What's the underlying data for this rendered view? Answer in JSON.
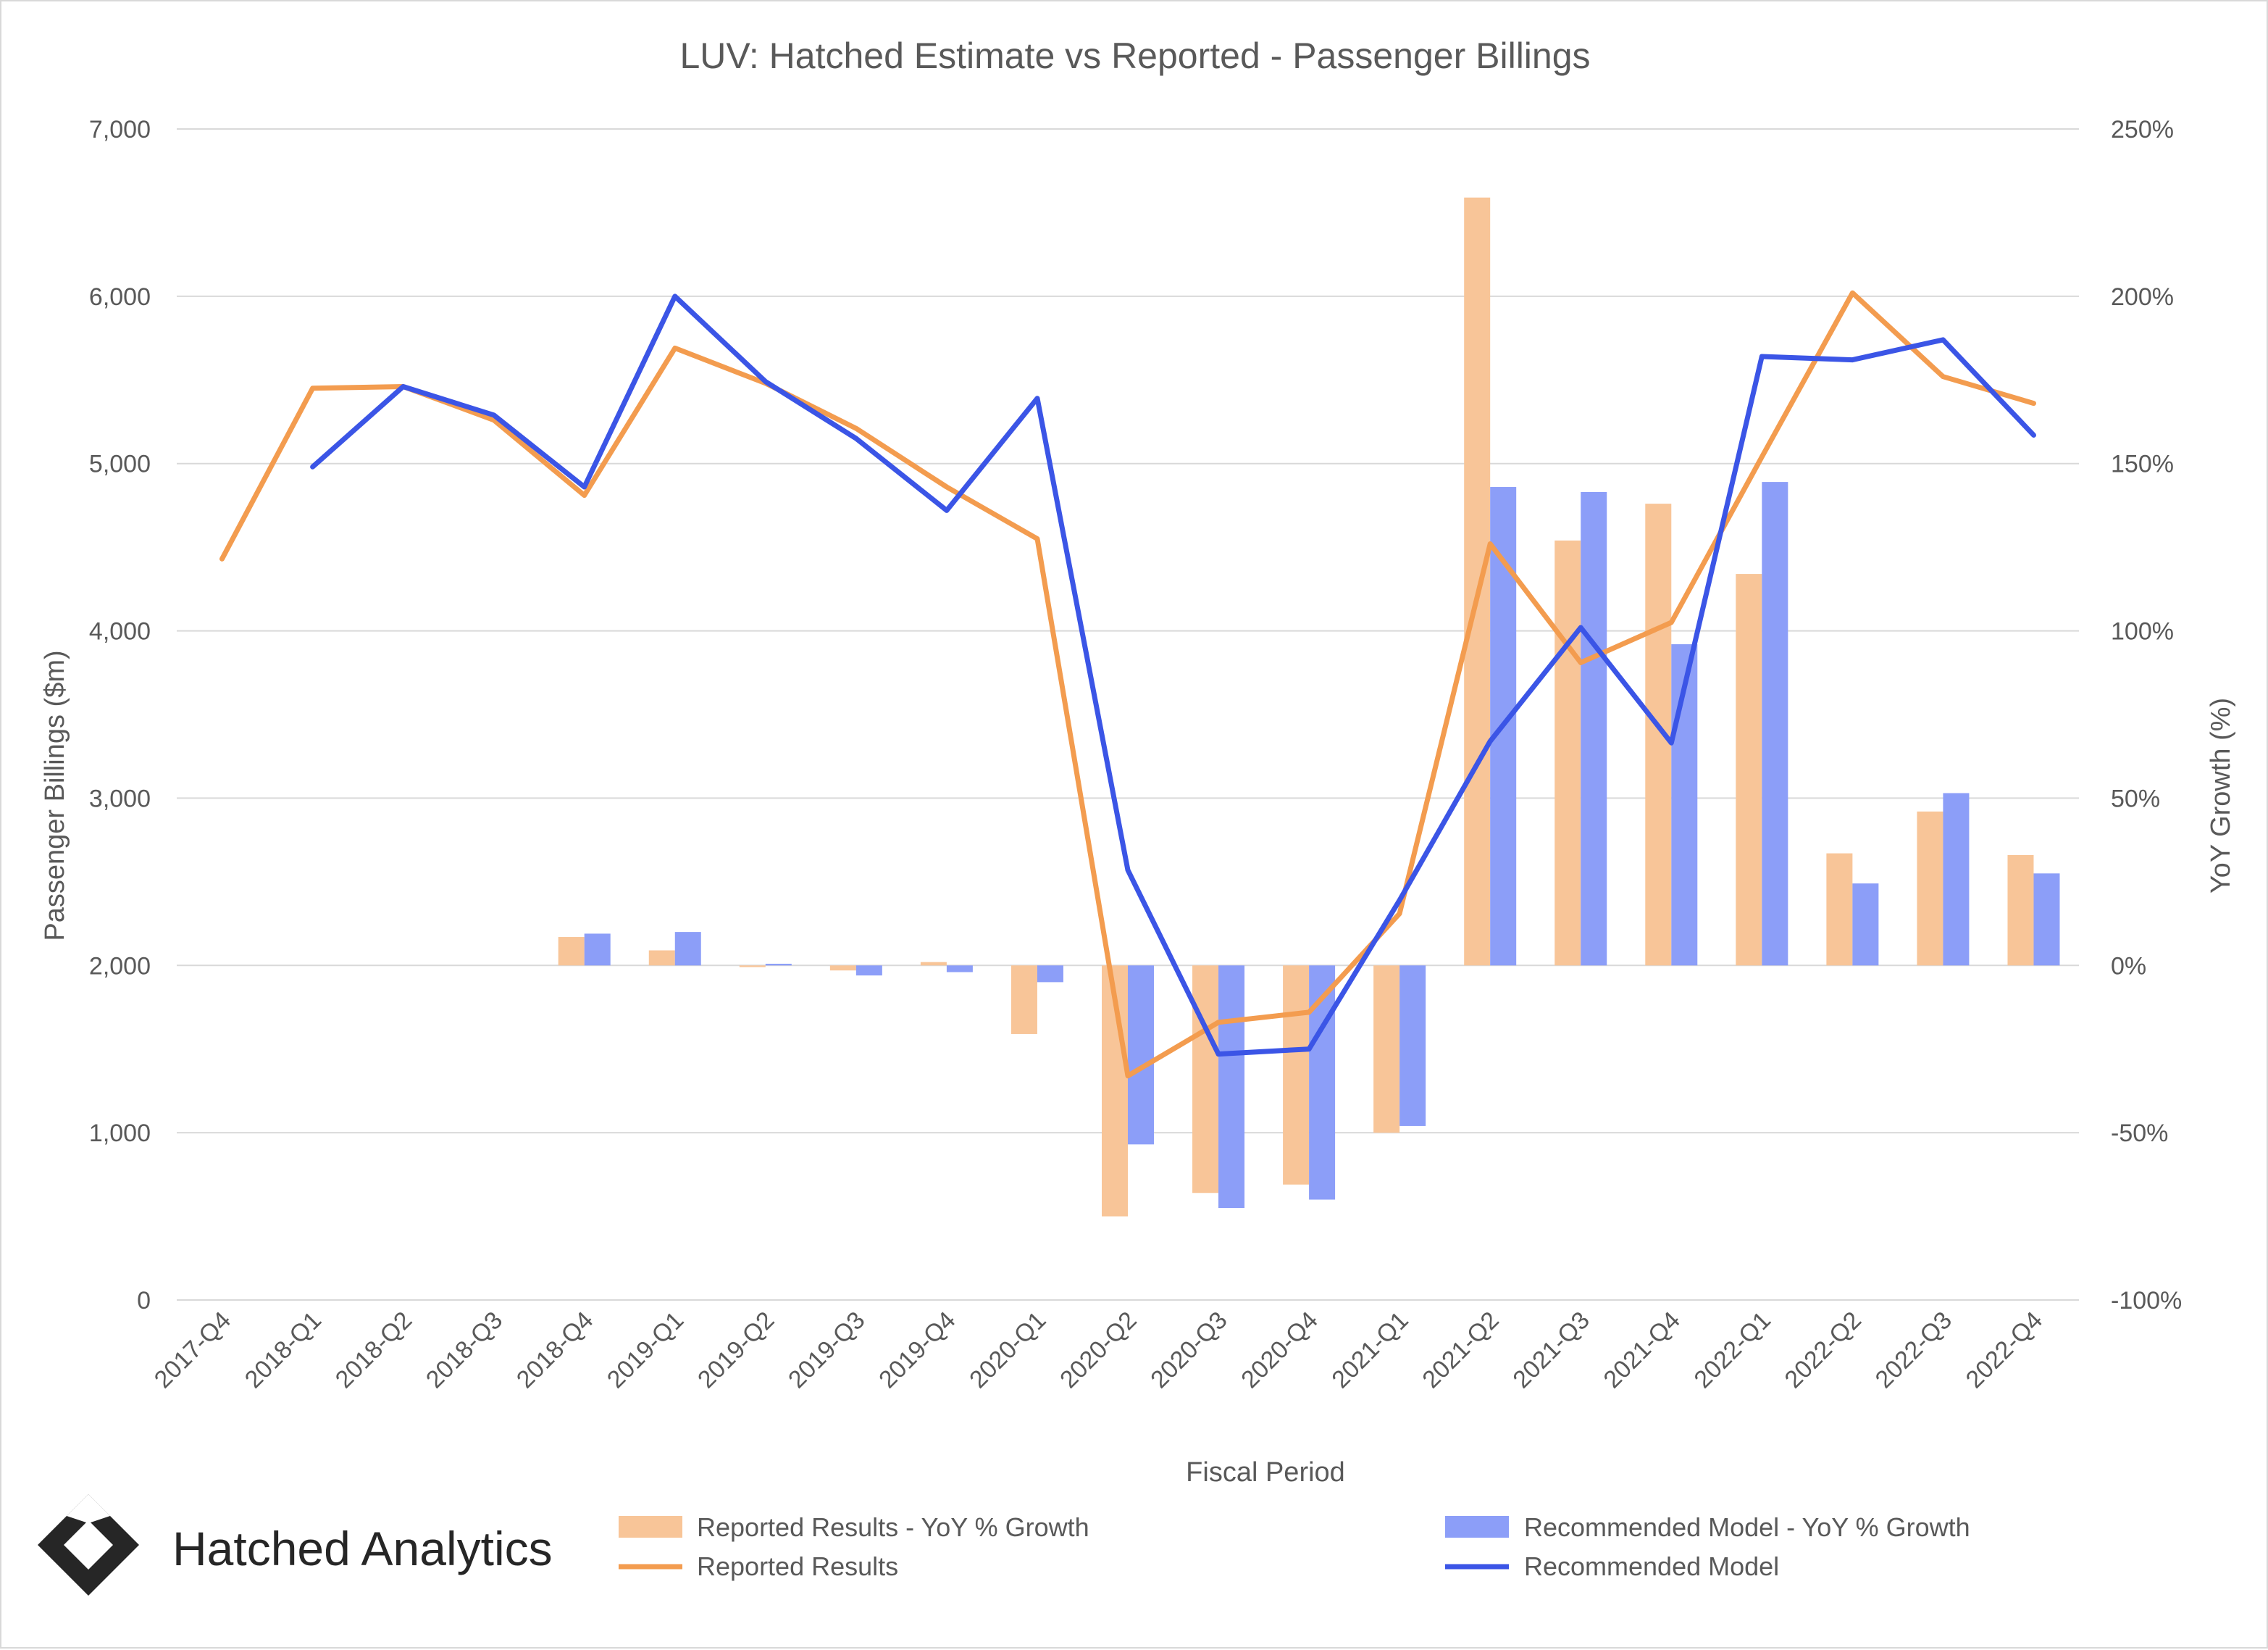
{
  "chart_data": {
    "type": "bar+line",
    "title": "LUV: Hatched Estimate vs Reported - Passenger Billings",
    "xlabel": "Fiscal Period",
    "ylabel": "Passenger Billings ($m)",
    "y2label": "YoY Growth (%)",
    "ylim": [
      0,
      7000
    ],
    "y2lim": [
      -100,
      250
    ],
    "y_ticks": [
      "0",
      "1,000",
      "2,000",
      "3,000",
      "4,000",
      "5,000",
      "6,000",
      "7,000"
    ],
    "y2_ticks": [
      "-100%",
      "-50%",
      "0%",
      "50%",
      "100%",
      "150%",
      "200%",
      "250%"
    ],
    "grid": true,
    "legend_position": "bottom",
    "categories": [
      "2017-Q4",
      "2018-Q1",
      "2018-Q2",
      "2018-Q3",
      "2018-Q4",
      "2019-Q1",
      "2019-Q2",
      "2019-Q3",
      "2019-Q4",
      "2020-Q1",
      "2020-Q2",
      "2020-Q3",
      "2020-Q4",
      "2021-Q1",
      "2021-Q2",
      "2021-Q3",
      "2021-Q4",
      "2022-Q1",
      "2022-Q2",
      "2022-Q3",
      "2022-Q4"
    ],
    "bar_series": [
      {
        "name": "Reported Results - YoY % Growth",
        "color": "#f8c598",
        "axis": "right",
        "values": [
          null,
          null,
          null,
          null,
          8.5,
          4.5,
          -0.5,
          -1.5,
          1,
          -20.5,
          -75,
          -68,
          -65.5,
          -50,
          229.5,
          127,
          138,
          117,
          33.5,
          46,
          33
        ]
      },
      {
        "name": "Recommended Model - YoY % Growth",
        "color": "#8c9ef8",
        "axis": "right",
        "values": [
          null,
          null,
          null,
          null,
          9.5,
          10,
          0.5,
          -3,
          -2,
          -5,
          -53.5,
          -72.5,
          -70,
          -48,
          143,
          141.5,
          96,
          144.5,
          24.5,
          51.5,
          27.5
        ]
      }
    ],
    "line_series": [
      {
        "name": "Reported Results",
        "color": "#f39c4f",
        "axis": "left",
        "values": [
          4430,
          5450,
          5460,
          5260,
          4810,
          5690,
          5480,
          5210,
          4860,
          4550,
          1340,
          1660,
          1720,
          2310,
          4520,
          3810,
          4050,
          5040,
          6020,
          5520,
          5360
        ]
      },
      {
        "name": "Recommended Model",
        "color": "#3b55e6",
        "axis": "left",
        "values": [
          null,
          4980,
          5460,
          5290,
          4860,
          6000,
          5490,
          5150,
          4720,
          5390,
          2570,
          1470,
          1500,
          2390,
          3340,
          4020,
          3330,
          5640,
          5620,
          5740,
          5170
        ]
      }
    ]
  },
  "legend": {
    "bar_reported": "Reported Results - YoY % Growth",
    "bar_model": "Recommended Model - YoY % Growth",
    "line_reported": "Reported Results",
    "line_model": "Recommended Model"
  },
  "brand": {
    "name": "Hatched Analytics",
    "logo_icon": "hatched-diamond-logo"
  }
}
